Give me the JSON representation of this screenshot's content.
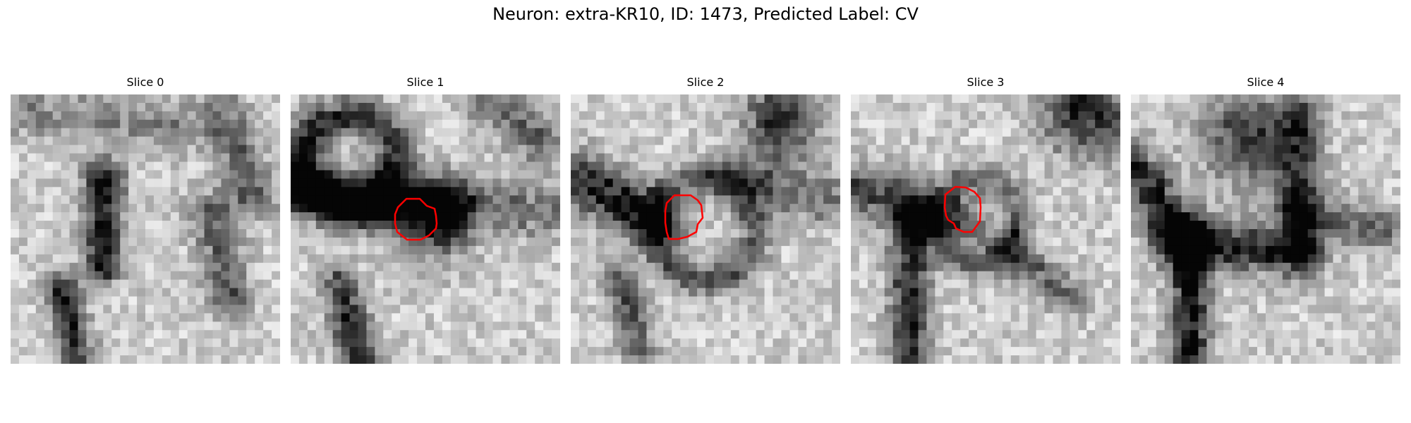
{
  "figure": {
    "title": "Neuron: extra-KR10, ID: 1473, Predicted Label: CV"
  },
  "slices": [
    {
      "title": "Slice 0",
      "contour": null
    },
    {
      "title": "Slice 1",
      "contour": "red"
    },
    {
      "title": "Slice 2",
      "contour": "red"
    },
    {
      "title": "Slice 3",
      "contour": "red"
    },
    {
      "title": "Slice 4",
      "contour": null
    }
  ],
  "colors": {
    "contour": "#ff0000",
    "background": "#ffffff"
  }
}
